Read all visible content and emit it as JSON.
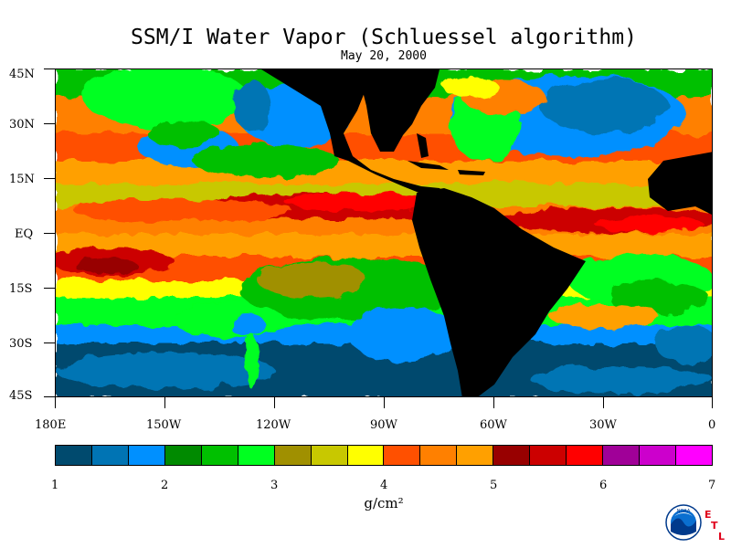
{
  "header": {
    "title": "SSM/I Water Vapor (Schluessel algorithm)",
    "date": "May 20, 2000"
  },
  "map": {
    "lat_labels": [
      "45N",
      "30N",
      "15N",
      "EQ",
      "15S",
      "30S",
      "45S"
    ],
    "lon_labels": [
      "180E",
      "150W",
      "120W",
      "90W",
      "60W",
      "30W",
      "0"
    ],
    "land_color": "#000000"
  },
  "colorbar": {
    "colors": [
      "#004a6e",
      "#0074b4",
      "#0090ff",
      "#008a00",
      "#00c000",
      "#00ff20",
      "#a09000",
      "#c8c800",
      "#ffff00",
      "#ff5000",
      "#ff8000",
      "#ffa000",
      "#980000",
      "#cc0000",
      "#ff0000",
      "#a00098",
      "#cc00cc",
      "#ff00ff"
    ],
    "tick_labels": [
      "1",
      "2",
      "3",
      "4",
      "5",
      "6",
      "7"
    ],
    "units": "g/cm²"
  },
  "logo": {
    "agency_text": "NOAA",
    "lab_letters": [
      "E",
      "T",
      "L"
    ]
  }
}
